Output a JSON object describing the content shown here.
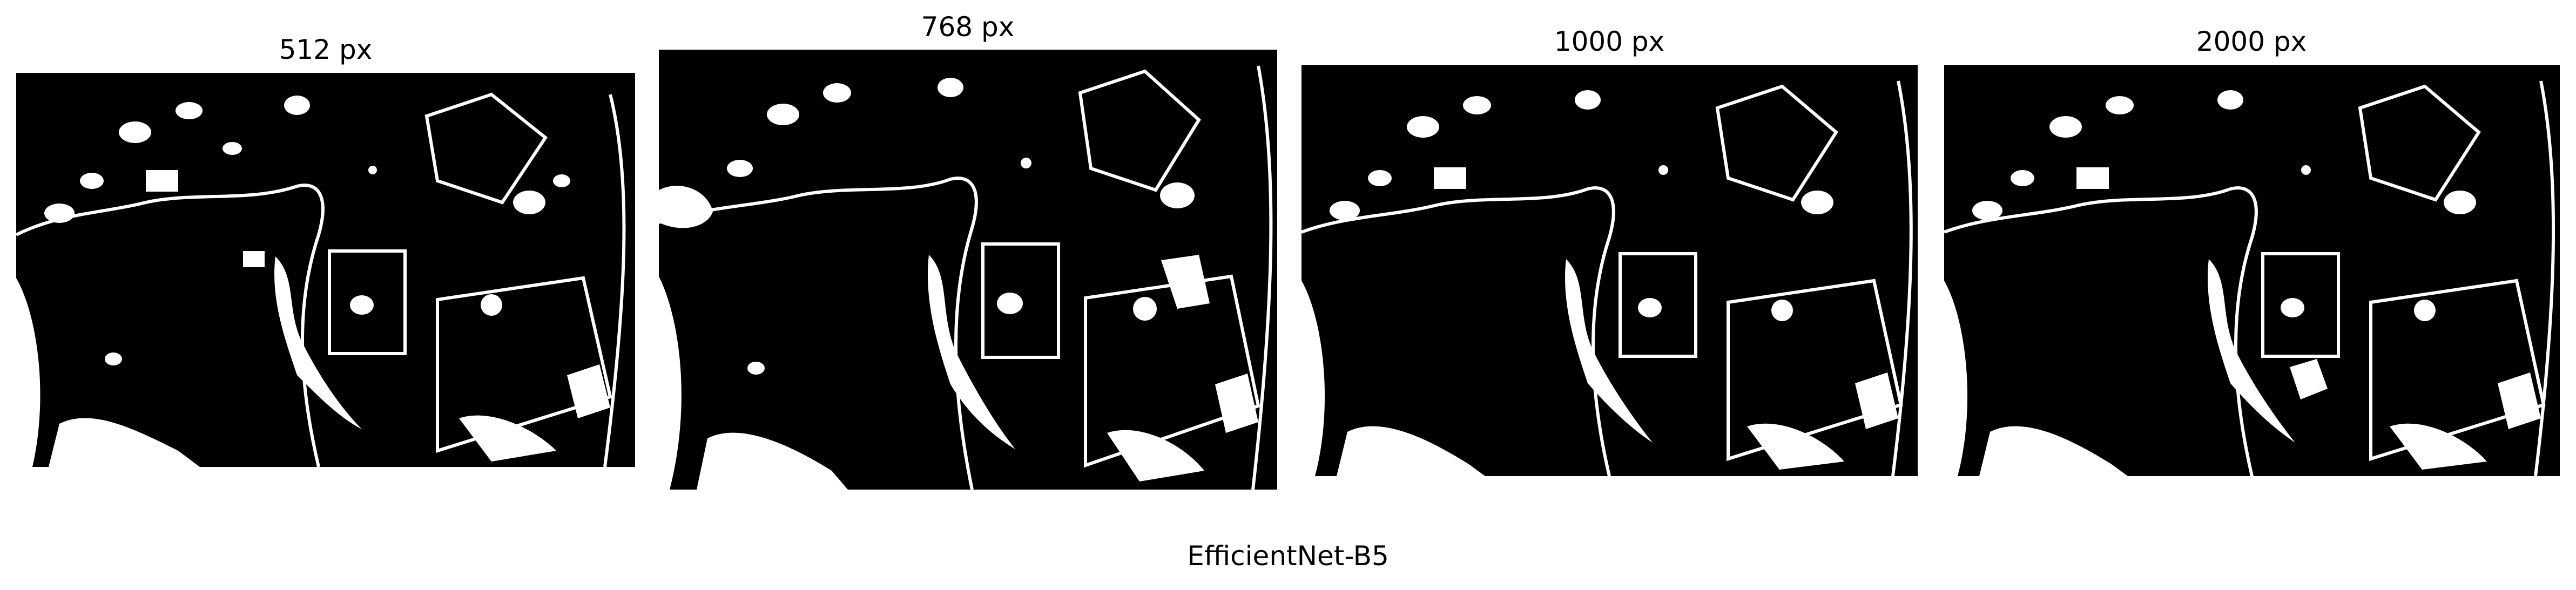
{
  "panels": [
    {
      "title": "512 px"
    },
    {
      "title": "768 px"
    },
    {
      "title": "1000 px"
    },
    {
      "title": "2000 px"
    }
  ],
  "caption": "EfficientNet-B5",
  "colors": {
    "mask_background": "#000000",
    "mask_foreground": "#ffffff",
    "page_background": "#ffffff"
  }
}
